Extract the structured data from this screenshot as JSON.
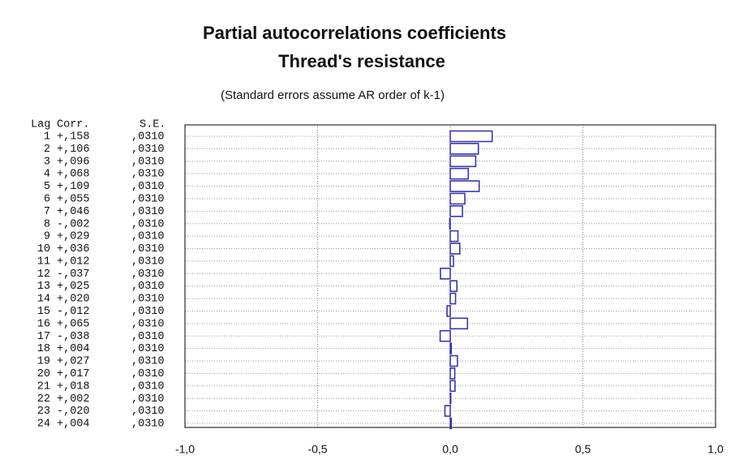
{
  "chart_data": {
    "type": "bar",
    "orientation": "horizontal",
    "title": "Partial autocorrelations coefficients",
    "subtitle": "Thread's resistance",
    "note": "(Standard errors assume AR order of k-1)",
    "column_headers": [
      "Lag",
      "Corr.",
      "S.E."
    ],
    "categories": [
      "1",
      "2",
      "3",
      "4",
      "5",
      "6",
      "7",
      "8",
      "9",
      "10",
      "11",
      "12",
      "13",
      "14",
      "15",
      "16",
      "17",
      "18",
      "19",
      "20",
      "21",
      "22",
      "23",
      "24"
    ],
    "values": [
      0.158,
      0.106,
      0.096,
      0.068,
      0.109,
      0.055,
      0.046,
      -0.002,
      0.029,
      0.036,
      0.012,
      -0.037,
      0.025,
      0.02,
      -0.012,
      0.065,
      -0.038,
      0.004,
      0.027,
      0.017,
      0.018,
      0.002,
      -0.02,
      0.004
    ],
    "value_labels": [
      "+,158",
      "+,106",
      "+,096",
      "+,068",
      "+,109",
      "+,055",
      "+,046",
      "-,002",
      "+,029",
      "+,036",
      "+,012",
      "-,037",
      "+,025",
      "+,020",
      "-,012",
      "+,065",
      "-,038",
      "+,004",
      "+,027",
      "+,017",
      "+,018",
      "+,002",
      "-,020",
      "+,004"
    ],
    "se": [
      ",0310",
      ",0310",
      ",0310",
      ",0310",
      ",0310",
      ",0310",
      ",0310",
      ",0310",
      ",0310",
      ",0310",
      ",0310",
      ",0310",
      ",0310",
      ",0310",
      ",0310",
      ",0310",
      ",0310",
      ",0310",
      ",0310",
      ",0310",
      ",0310",
      ",0310",
      ",0310",
      ",0310"
    ],
    "color": "#3a3a9a",
    "xlim": [
      -1,
      1
    ],
    "xticks": [
      {
        "value": -1,
        "label": "-1,0"
      },
      {
        "value": -0.5,
        "label": "-0,5"
      },
      {
        "value": 0,
        "label": "0,0"
      },
      {
        "value": 0.5,
        "label": "0,5"
      },
      {
        "value": 1,
        "label": "1,0"
      }
    ],
    "grid": true
  }
}
